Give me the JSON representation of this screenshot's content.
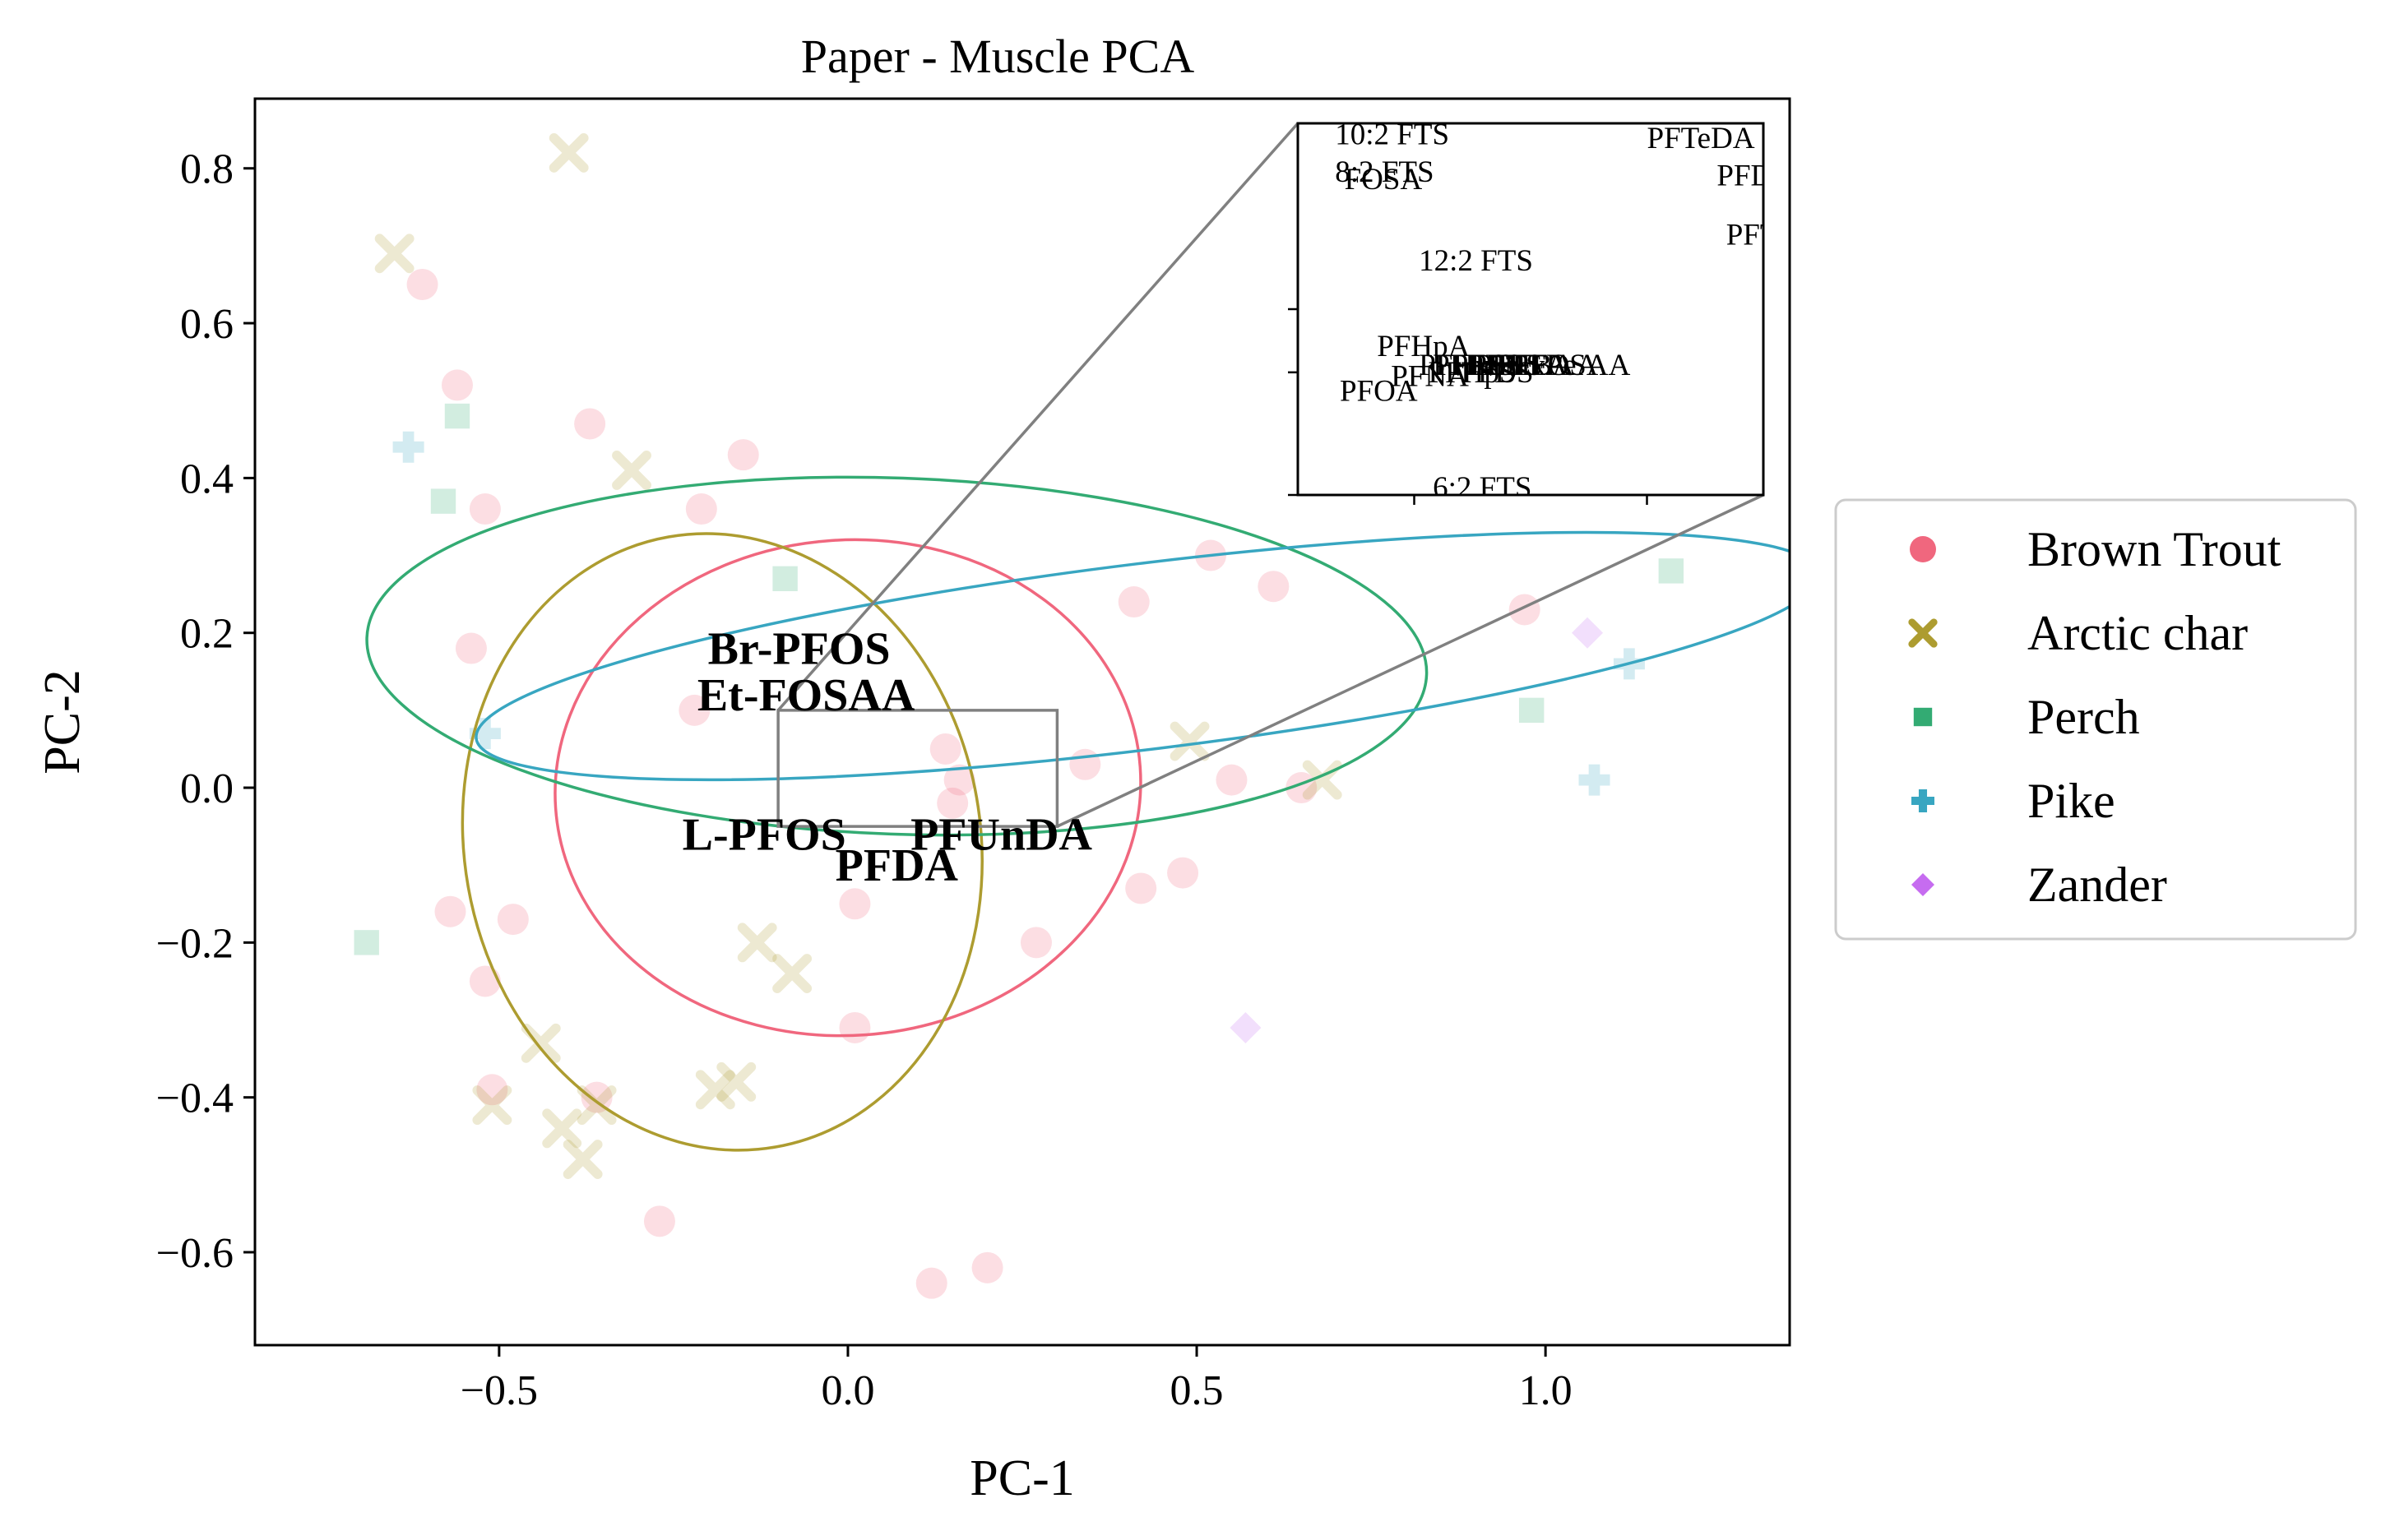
{
  "chart_data": {
    "type": "scatter",
    "title": "Paper - Muscle PCA",
    "xlabel": "PC-1",
    "ylabel": "PC-2",
    "xlim": [
      -0.85,
      1.35
    ],
    "ylim": [
      -0.72,
      0.89
    ],
    "x_ticks": [
      {
        "value": -0.5,
        "label": "−0.5"
      },
      {
        "value": 0.0,
        "label": "0.0"
      },
      {
        "value": 0.5,
        "label": "0.5"
      },
      {
        "value": 1.0,
        "label": "1.0"
      }
    ],
    "y_ticks": [
      {
        "value": 0.8,
        "label": "0.8"
      },
      {
        "value": 0.6,
        "label": "0.6"
      },
      {
        "value": 0.4,
        "label": "0.4"
      },
      {
        "value": 0.2,
        "label": "0.2"
      },
      {
        "value": 0.0,
        "label": "0.0"
      },
      {
        "value": -0.2,
        "label": "−0.2"
      },
      {
        "value": -0.4,
        "label": "−0.4"
      },
      {
        "value": -0.6,
        "label": "−0.6"
      }
    ],
    "grid": false,
    "legend_position": "outside-right",
    "series": [
      {
        "name": "Brown Trout",
        "marker": "circle",
        "color": "#f0677e",
        "points": [
          [
            -0.61,
            0.65
          ],
          [
            -0.56,
            0.52
          ],
          [
            -0.37,
            0.47
          ],
          [
            -0.52,
            0.36
          ],
          [
            -0.54,
            0.18
          ],
          [
            -0.15,
            0.43
          ],
          [
            -0.21,
            0.36
          ],
          [
            -0.22,
            0.1
          ],
          [
            0.14,
            0.05
          ],
          [
            0.34,
            0.03
          ],
          [
            0.16,
            0.01
          ],
          [
            0.55,
            0.01
          ],
          [
            0.65,
            0.0
          ],
          [
            0.15,
            -0.02
          ],
          [
            0.52,
            0.3
          ],
          [
            0.61,
            0.26
          ],
          [
            0.41,
            0.24
          ],
          [
            0.97,
            0.23
          ],
          [
            0.48,
            -0.11
          ],
          [
            0.42,
            -0.13
          ],
          [
            0.01,
            -0.15
          ],
          [
            0.27,
            -0.2
          ],
          [
            0.01,
            -0.31
          ],
          [
            -0.57,
            -0.16
          ],
          [
            -0.48,
            -0.17
          ],
          [
            -0.52,
            -0.25
          ],
          [
            -0.51,
            -0.39
          ],
          [
            -0.36,
            -0.4
          ],
          [
            -0.27,
            -0.56
          ],
          [
            0.12,
            -0.64
          ],
          [
            0.2,
            -0.62
          ]
        ]
      },
      {
        "name": "Arctic char",
        "marker": "x",
        "color": "#ad9c30",
        "points": [
          [
            -0.4,
            0.82
          ],
          [
            -0.65,
            0.69
          ],
          [
            -0.31,
            0.41
          ],
          [
            0.49,
            0.06
          ],
          [
            0.68,
            0.01
          ],
          [
            -0.13,
            -0.2
          ],
          [
            -0.08,
            -0.24
          ],
          [
            -0.44,
            -0.33
          ],
          [
            -0.16,
            -0.38
          ],
          [
            -0.19,
            -0.39
          ],
          [
            -0.51,
            -0.41
          ],
          [
            -0.36,
            -0.41
          ],
          [
            -0.41,
            -0.44
          ],
          [
            -0.38,
            -0.48
          ]
        ]
      },
      {
        "name": "Perch",
        "marker": "square",
        "color": "#33ab73",
        "points": [
          [
            -0.56,
            0.48
          ],
          [
            -0.58,
            0.37
          ],
          [
            -0.09,
            0.27
          ],
          [
            1.18,
            0.28
          ],
          [
            0.98,
            0.1
          ],
          [
            -0.69,
            -0.2
          ]
        ]
      },
      {
        "name": "Pike",
        "marker": "plus",
        "color": "#38a6c1",
        "points": [
          [
            -0.63,
            0.44
          ],
          [
            -0.52,
            0.07
          ],
          [
            1.12,
            0.16
          ],
          [
            1.07,
            0.01
          ]
        ]
      },
      {
        "name": "Zander",
        "marker": "diamond",
        "color": "#c66cf0",
        "points": [
          [
            1.06,
            0.2
          ],
          [
            0.57,
            -0.31
          ]
        ]
      }
    ],
    "ellipses": [
      {
        "name": "Brown Trout",
        "color": "#f0677e",
        "cx": 0.0,
        "cy": 0.0,
        "rx": 0.42,
        "ry": 0.32,
        "angle": -4
      },
      {
        "name": "Arctic char",
        "color": "#ad9c30",
        "cx": -0.18,
        "cy": -0.07,
        "rx": 0.37,
        "ry": 0.4,
        "angle": -10
      },
      {
        "name": "Perch",
        "color": "#33ab73",
        "cx": 0.07,
        "cy": 0.17,
        "rx": 0.76,
        "ry": 0.23,
        "angle": 2
      },
      {
        "name": "Pike",
        "color": "#38a6c1",
        "cx": 0.43,
        "cy": 0.17,
        "rx": 0.97,
        "ry": 0.12,
        "angle": -7
      }
    ],
    "annotations": [
      {
        "text": "Br-PFOS",
        "x": -0.07,
        "y": 0.16
      },
      {
        "text": "Et-FOSAA",
        "x": -0.06,
        "y": 0.1
      },
      {
        "text": "L-PFOS",
        "x": -0.12,
        "y": -0.08
      },
      {
        "text": "PFUnDA",
        "x": 0.22,
        "y": -0.08
      },
      {
        "text": "PFDA",
        "x": 0.07,
        "y": -0.12
      }
    ],
    "zoom_region": {
      "xlim": [
        -0.1,
        0.3
      ],
      "ylim": [
        -0.05,
        0.1
      ]
    },
    "inset": {
      "labels": [
        {
          "text": "10:2 FTS",
          "x": 0.08,
          "y": 0.97
        },
        {
          "text": "8:2 FTS",
          "x": 0.08,
          "y": 0.87
        },
        {
          "text": "FOSA",
          "x": 0.1,
          "y": 0.85
        },
        {
          "text": "PFTeDA",
          "x": 0.75,
          "y": 0.96
        },
        {
          "text": "PFDoDA",
          "x": 0.9,
          "y": 0.86
        },
        {
          "text": "PFTrDA",
          "x": 0.92,
          "y": 0.7
        },
        {
          "text": "12:2 FTS",
          "x": 0.26,
          "y": 0.63
        },
        {
          "text": "PFHpA",
          "x": 0.17,
          "y": 0.4
        },
        {
          "text": "PFNA",
          "x": 0.2,
          "y": 0.32
        },
        {
          "text": "PFOA",
          "x": 0.09,
          "y": 0.28
        },
        {
          "text": "PFHxS",
          "x": 0.26,
          "y": 0.35
        },
        {
          "text": "PFPeS",
          "x": 0.29,
          "y": 0.35
        },
        {
          "text": "PFBS",
          "x": 0.33,
          "y": 0.35
        },
        {
          "text": "PFHxA",
          "x": 0.38,
          "y": 0.35
        },
        {
          "text": "PFBA",
          "x": 0.43,
          "y": 0.35
        },
        {
          "text": "PFPeA",
          "x": 0.46,
          "y": 0.35
        },
        {
          "text": "PFHpS",
          "x": 0.28,
          "y": 0.33
        },
        {
          "text": "PFDS",
          "x": 0.35,
          "y": 0.33
        },
        {
          "text": "PFNS",
          "x": 0.37,
          "y": 0.35
        },
        {
          "text": "FOSAA",
          "x": 0.5,
          "y": 0.35
        },
        {
          "text": "6:2 FTS",
          "x": 0.29,
          "y": 0.02
        }
      ]
    }
  }
}
